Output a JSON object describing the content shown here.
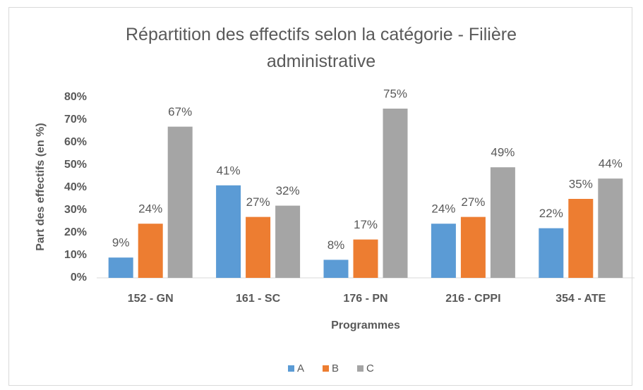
{
  "chart_data": {
    "type": "bar",
    "title": "Répartition des effectifs selon la catégorie - Filière administrative",
    "x_label": "Programmes",
    "y_label": "Part des effectifs (en %)",
    "categories": [
      "152 - GN",
      "161 - SC",
      "176 - PN",
      "216 - CPPI",
      "354 - ATE"
    ],
    "series": [
      {
        "name": "A",
        "color": "#5b9bd5",
        "values": [
          9,
          41,
          8,
          24,
          22
        ],
        "value_labels": [
          "9%",
          "41%",
          "8%",
          "24%",
          "22%"
        ]
      },
      {
        "name": "B",
        "color": "#ed7d31",
        "values": [
          24,
          27,
          17,
          27,
          35
        ],
        "value_labels": [
          "24%",
          "27%",
          "17%",
          "27%",
          "35%"
        ]
      },
      {
        "name": "C",
        "color": "#a5a5a5",
        "values": [
          67,
          32,
          75,
          49,
          44
        ],
        "value_labels": [
          "67%",
          "32%",
          "75%",
          "49%",
          "44%"
        ]
      }
    ],
    "ylim": [
      0,
      80
    ],
    "yticks": [
      {
        "value": 0,
        "label": "0%"
      },
      {
        "value": 10,
        "label": "10%"
      },
      {
        "value": 20,
        "label": "20%"
      },
      {
        "value": 30,
        "label": "30%"
      },
      {
        "value": 40,
        "label": "40%"
      },
      {
        "value": 50,
        "label": "50%"
      },
      {
        "value": 60,
        "label": "60%"
      },
      {
        "value": 70,
        "label": "70%"
      },
      {
        "value": 80,
        "label": "80%"
      }
    ],
    "grid": false,
    "legend": "bottom"
  }
}
